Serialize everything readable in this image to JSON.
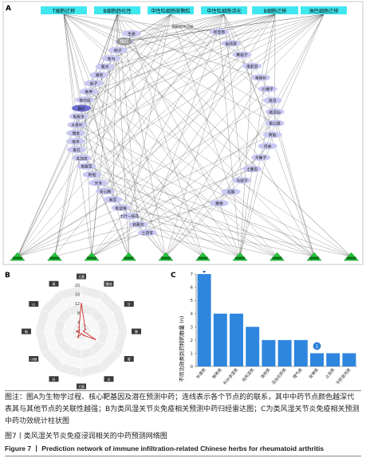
{
  "panelA": {
    "label": "A",
    "top_nodes": [
      "T细胞迁移",
      "B细胞趋化性",
      "中性粒细胞脱颗粒",
      "中性粒细胞活化",
      "B细胞迁移",
      "淋巴细胞迁移"
    ],
    "left_nodes": [
      "生姜",
      "川乌",
      "柳子",
      "苍乌",
      "莪术",
      "薄荷",
      "饭子",
      "数甲",
      "夜归设",
      "桑叶",
      "龟板冬",
      "大青叶",
      "瑞发",
      "夜羊",
      "秦艽",
      "五加皮",
      "鱼腥草",
      "附船",
      "天冬",
      "安心脱",
      "紫草",
      "板蓝根",
      "七叶一枝花",
      "钩藤灰",
      "土茯苓"
    ],
    "right_nodes": [
      "积宝草",
      "金线莲",
      "黄柏子",
      "鬼箭羽",
      "骨碎补",
      "川楝子",
      "泽泻",
      "威灵仙",
      "雷公藤",
      "商陆",
      "丹参",
      "木鳖子",
      "土鳖虫",
      "马钱子",
      "龙胆",
      "麝香"
    ],
    "hub_node": "桃红",
    "tag_small": "花椒花中间枝",
    "bottom_count": 10
  },
  "panelB": {
    "label": "B",
    "ticks": [
      "0",
      "4",
      "8",
      "12",
      "16",
      "20"
    ],
    "axes": [
      "大黄",
      "酸味",
      "甘",
      "脾",
      "胃",
      "辛",
      "大肠",
      "肝",
      "小肠",
      "肺",
      "心",
      "肾"
    ],
    "series_name": "",
    "values": [
      12,
      3,
      2,
      1,
      7,
      2,
      1,
      3,
      1,
      2,
      1,
      2
    ]
  },
  "panelC": {
    "label": "C",
    "type": "bar",
    "ylabel": "不同功效类别药物的数量 (n)",
    "categories": [
      "补虚类",
      "解表类",
      "利水渗湿类",
      "祛风湿类",
      "清热类",
      "活血化瘀类",
      "理气类",
      "安神类",
      "止血类",
      "平肝息风类"
    ],
    "values": [
      7,
      4,
      4,
      3,
      2,
      2,
      2,
      1,
      1,
      1
    ],
    "ylim": [
      0,
      7
    ],
    "yticks": [
      "0",
      "1",
      "2",
      "3",
      "4",
      "5",
      "6",
      "7"
    ],
    "bar_color": "#2e86de",
    "marker_label": "1"
  },
  "caption": {
    "label": "图注：",
    "text": "图A为生物学过程、核心靶基因及潜在预测中药；连线表示各个节点的的联系，其中中药节点颜色越深代表其与其他节点的关联性越强；B为类风湿关节炎免疫相关预测中药归经雷达图；C为类风湿关节炎免疫相关预测中药功效统计柱状图"
  },
  "figure_cn": "图7丨类风湿关节炎免疫浸润相关的中药预测网络图",
  "figure_en": "Figure 7 丨 Prediction network of immune infiltration-related Chinese herbs for rheumatoid arthritis"
}
